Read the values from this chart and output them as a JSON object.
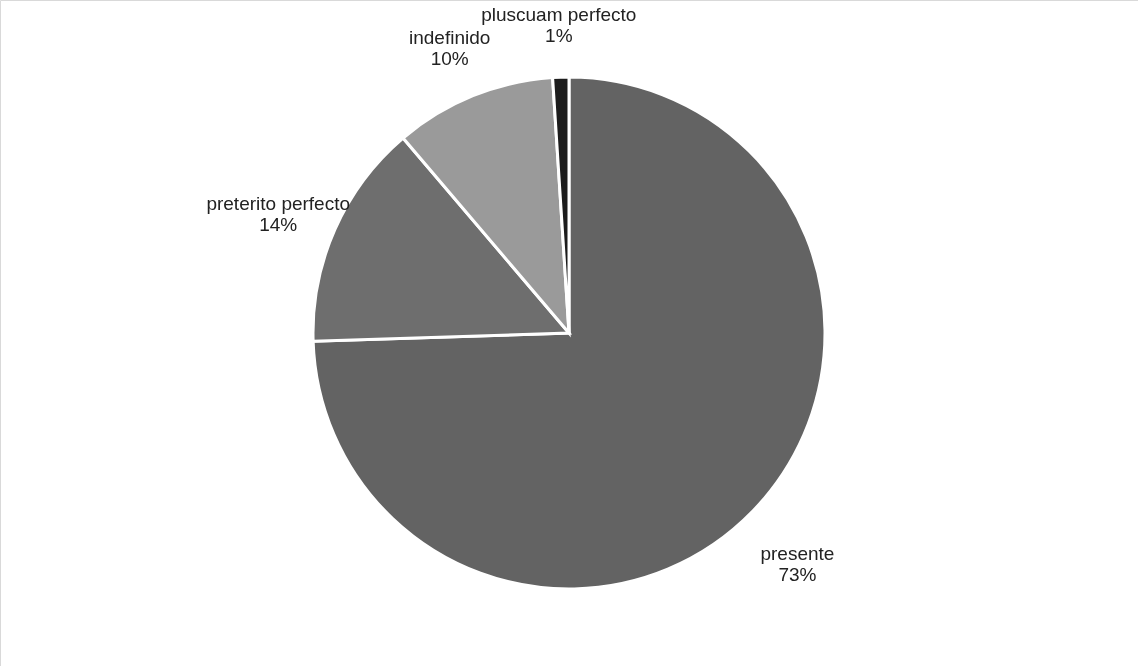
{
  "chart_data": {
    "type": "pie",
    "categories": [
      "presente",
      "preterito perfecto",
      "indefinido",
      "pluscuam perfecto"
    ],
    "values": [
      73,
      14,
      10,
      1
    ],
    "value_labels": [
      "73%",
      "14%",
      "10%",
      "1%"
    ],
    "colors": [
      "#636363",
      "#6e6e6e",
      "#9a9a9a",
      "#1c1c1c"
    ],
    "legend": false
  }
}
